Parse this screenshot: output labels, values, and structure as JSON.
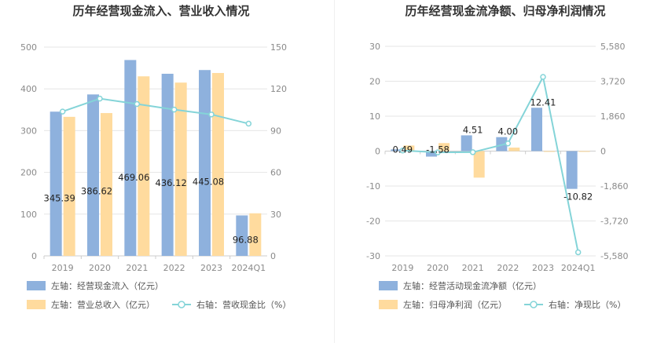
{
  "colors": {
    "bar_primary": "#8eb1dd",
    "bar_secondary": "#ffdb9e",
    "line": "#84d4d8",
    "grid": "#e6e6e6",
    "axis": "#cccccc"
  },
  "chart_data": [
    {
      "type": "bar",
      "title": "历年经营现金流入、营业收入情况",
      "categories": [
        "2019",
        "2020",
        "2021",
        "2022",
        "2023",
        "2024Q1"
      ],
      "y_left": {
        "ticks": [
          "0",
          "100",
          "200",
          "300",
          "400",
          "500"
        ],
        "ylim": [
          0,
          500
        ]
      },
      "y_right": {
        "ticks": [
          "0",
          "30",
          "60",
          "90",
          "120",
          "150"
        ],
        "ylim": [
          0,
          150
        ]
      },
      "series": [
        {
          "name": "左轴：经营现金流入（亿元）",
          "kind": "bar",
          "axis": "left",
          "values": [
            345.39,
            386.62,
            469.06,
            436.12,
            445.08,
            96.88
          ],
          "labels": [
            "345.39",
            "386.62",
            "469.06",
            "436.12",
            "445.08",
            "96.88"
          ]
        },
        {
          "name": "左轴：营业总收入（亿元）",
          "kind": "bar",
          "axis": "left",
          "values": [
            333,
            342,
            430,
            415,
            438,
            102
          ]
        },
        {
          "name": "右轴：营收现金比（%）",
          "kind": "line",
          "axis": "right",
          "values": [
            103.7,
            113.0,
            109.1,
            105.1,
            101.6,
            95.0
          ]
        }
      ],
      "grid": true,
      "legend_position": "bottom-left"
    },
    {
      "type": "bar",
      "title": "历年经营现金流净额、归母净利润情况",
      "categories": [
        "2019",
        "2020",
        "2021",
        "2022",
        "2023",
        "2024Q1"
      ],
      "y_left": {
        "ticks": [
          "-30",
          "-20",
          "-10",
          "0",
          "10",
          "20",
          "30"
        ],
        "ylim": [
          -30,
          30
        ]
      },
      "y_right": {
        "ticks": [
          "-5,580",
          "-3,720",
          "-1,860",
          "0",
          "1,860",
          "3,720",
          "5,580"
        ],
        "ylim": [
          -5580,
          5580
        ]
      },
      "series": [
        {
          "name": "左轴：经营活动现金流净额（亿元）",
          "kind": "bar",
          "axis": "left",
          "values": [
            0.49,
            -1.58,
            4.51,
            4.0,
            12.41,
            -10.82
          ],
          "labels": [
            "0.49",
            "-1.58",
            "4.51",
            "4.00",
            "12.41",
            "-10.82"
          ]
        },
        {
          "name": "左轴：归母净利润（亿元）",
          "kind": "bar",
          "axis": "left",
          "values": [
            1.6,
            2.3,
            -7.6,
            1.0,
            -0.2,
            -0.2
          ]
        },
        {
          "name": "右轴：净现比（%）",
          "kind": "line",
          "axis": "right",
          "values": [
            31,
            -70,
            -59,
            410,
            3950,
            -5390
          ]
        }
      ],
      "grid": true,
      "legend_position": "bottom-left"
    }
  ]
}
